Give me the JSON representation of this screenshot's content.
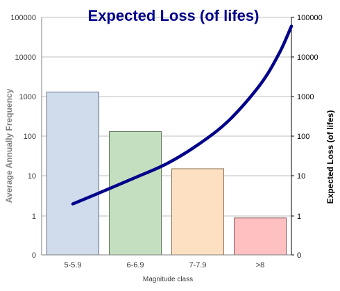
{
  "chart_data": {
    "type": "bar",
    "title": "Expected Loss (of lifes)",
    "xlabel": "Magnitude class",
    "ylabel": "Average Annually Frequency",
    "y2label": "Expected Loss (of lifes)",
    "categories": [
      "5-5.9",
      "6-6.9",
      "7-7.9",
      ">8"
    ],
    "left_ticks": [
      "0",
      "1",
      "10",
      "100",
      "1000",
      "10000",
      "100000"
    ],
    "right_ticks": [
      "0",
      "1",
      "10",
      "100",
      "1000",
      "10000",
      "100000"
    ],
    "scale": "log",
    "series": [
      {
        "type": "bar",
        "values": [
          1300,
          130,
          15,
          0.95
        ],
        "fills": [
          "#d0dcec",
          "#c4dfbf",
          "#fde0c1",
          "#fec0c0"
        ],
        "strokes": [
          "#5f6f84",
          "#5f7a59",
          "#8b7254",
          "#8a5a5a"
        ]
      },
      {
        "type": "line",
        "axis": "right",
        "color": "#00008b",
        "points": [
          {
            "x": 0,
            "y": 2
          },
          {
            "x": 0.5,
            "y": 4.2
          },
          {
            "x": 1,
            "y": 9
          },
          {
            "x": 1.5,
            "y": 20
          },
          {
            "x": 2,
            "y": 60
          },
          {
            "x": 2.5,
            "y": 250
          },
          {
            "x": 3,
            "y": 2000
          },
          {
            "x": 3.3,
            "y": 12000
          },
          {
            "x": 3.5,
            "y": 60000
          }
        ]
      }
    ],
    "grid": true
  }
}
